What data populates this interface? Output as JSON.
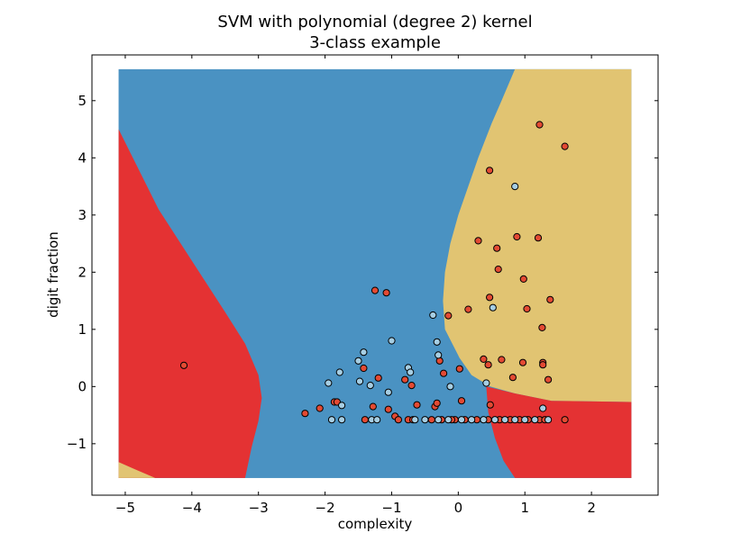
{
  "chart_data": {
    "type": "scatter",
    "title": "SVM with polynomial (degree 2) kernel",
    "subtitle": "3-class example",
    "xlabel": "complexity",
    "ylabel": "digit fraction",
    "xlim": [
      -5.5,
      3.0
    ],
    "ylim": [
      -1.9,
      5.8
    ],
    "xticks": [
      -5,
      -4,
      -3,
      -2,
      -1,
      0,
      1,
      2
    ],
    "yticks": [
      -1,
      0,
      1,
      2,
      3,
      4,
      5
    ],
    "xtick_labels": [
      "−5",
      "−4",
      "−3",
      "−2",
      "−1",
      "0",
      "1",
      "2"
    ],
    "ytick_labels": [
      "−1",
      "0",
      "1",
      "2",
      "3",
      "4",
      "5"
    ],
    "grid": false,
    "decision_regions": {
      "extent": {
        "x": [
          -5.1,
          2.6
        ],
        "y": [
          -1.6,
          5.55
        ]
      },
      "colors": {
        "red": "#e43233",
        "blue": "#4a92c2",
        "yellow": "#e1c472"
      }
    },
    "series": [
      {
        "class": "red",
        "color": "#e34a33",
        "points": [
          [
            -4.12,
            0.37
          ],
          [
            -2.3,
            -0.47
          ],
          [
            -2.08,
            -0.38
          ],
          [
            -1.86,
            -0.27
          ],
          [
            -1.82,
            -0.27
          ],
          [
            -1.42,
            0.32
          ],
          [
            -1.28,
            -0.35
          ],
          [
            -1.2,
            0.15
          ],
          [
            -1.25,
            1.68
          ],
          [
            -1.08,
            1.64
          ],
          [
            -1.05,
            -0.4
          ],
          [
            -0.95,
            -0.52
          ],
          [
            -0.8,
            0.12
          ],
          [
            -0.7,
            0.02
          ],
          [
            -0.62,
            -0.32
          ],
          [
            -0.35,
            -0.35
          ],
          [
            -0.32,
            -0.29
          ],
          [
            -0.28,
            0.45
          ],
          [
            -0.22,
            0.23
          ],
          [
            -0.15,
            1.24
          ],
          [
            -0.05,
            -0.58
          ],
          [
            0.02,
            0.31
          ],
          [
            0.05,
            -0.25
          ],
          [
            0.15,
            1.35
          ],
          [
            0.3,
            2.55
          ],
          [
            0.38,
            0.48
          ],
          [
            0.45,
            0.38
          ],
          [
            0.47,
            3.78
          ],
          [
            0.47,
            1.56
          ],
          [
            0.48,
            -0.32
          ],
          [
            0.58,
            2.42
          ],
          [
            0.6,
            2.05
          ],
          [
            0.65,
            0.47
          ],
          [
            0.82,
            0.16
          ],
          [
            0.88,
            2.62
          ],
          [
            0.97,
            0.42
          ],
          [
            0.98,
            1.88
          ],
          [
            1.03,
            1.36
          ],
          [
            1.2,
            2.6
          ],
          [
            1.22,
            4.58
          ],
          [
            1.26,
            1.03
          ],
          [
            1.27,
            0.42
          ],
          [
            1.27,
            0.38
          ],
          [
            1.35,
            0.12
          ],
          [
            1.38,
            1.52
          ],
          [
            1.6,
            4.2
          ],
          [
            -1.4,
            -0.58
          ],
          [
            -0.9,
            -0.58
          ],
          [
            -0.75,
            -0.58
          ],
          [
            -0.68,
            -0.58
          ],
          [
            -0.4,
            -0.58
          ],
          [
            -0.25,
            -0.58
          ],
          [
            -0.1,
            -0.58
          ],
          [
            0.1,
            -0.58
          ],
          [
            0.28,
            -0.58
          ],
          [
            0.45,
            -0.58
          ],
          [
            0.62,
            -0.58
          ],
          [
            0.78,
            -0.58
          ],
          [
            0.92,
            -0.58
          ],
          [
            1.05,
            -0.58
          ],
          [
            1.22,
            -0.58
          ],
          [
            1.3,
            -0.58
          ],
          [
            1.6,
            -0.58
          ]
        ]
      },
      {
        "class": "blue",
        "color": "#a6cee3",
        "points": [
          [
            -1.95,
            0.06
          ],
          [
            -1.78,
            0.25
          ],
          [
            -1.75,
            -0.33
          ],
          [
            -1.5,
            0.45
          ],
          [
            -1.48,
            0.09
          ],
          [
            -1.42,
            0.6
          ],
          [
            -1.32,
            0.02
          ],
          [
            -1.05,
            -0.1
          ],
          [
            -1.0,
            0.8
          ],
          [
            -0.75,
            0.33
          ],
          [
            -0.72,
            0.25
          ],
          [
            -0.38,
            1.25
          ],
          [
            -0.32,
            0.78
          ],
          [
            -0.3,
            0.55
          ],
          [
            -0.12,
            0.0
          ],
          [
            0.42,
            0.06
          ],
          [
            0.52,
            1.38
          ],
          [
            0.85,
            3.5
          ],
          [
            1.27,
            -0.38
          ],
          [
            -1.9,
            -0.58
          ],
          [
            -1.75,
            -0.58
          ],
          [
            -1.3,
            -0.58
          ],
          [
            -1.22,
            -0.58
          ],
          [
            -0.65,
            -0.58
          ],
          [
            -0.5,
            -0.58
          ],
          [
            -0.3,
            -0.58
          ],
          [
            -0.15,
            -0.58
          ],
          [
            0.05,
            -0.58
          ],
          [
            0.2,
            -0.58
          ],
          [
            0.38,
            -0.58
          ],
          [
            0.55,
            -0.58
          ],
          [
            0.7,
            -0.58
          ],
          [
            0.85,
            -0.58
          ],
          [
            1.0,
            -0.58
          ],
          [
            1.15,
            -0.58
          ],
          [
            1.35,
            -0.58
          ]
        ]
      }
    ]
  }
}
